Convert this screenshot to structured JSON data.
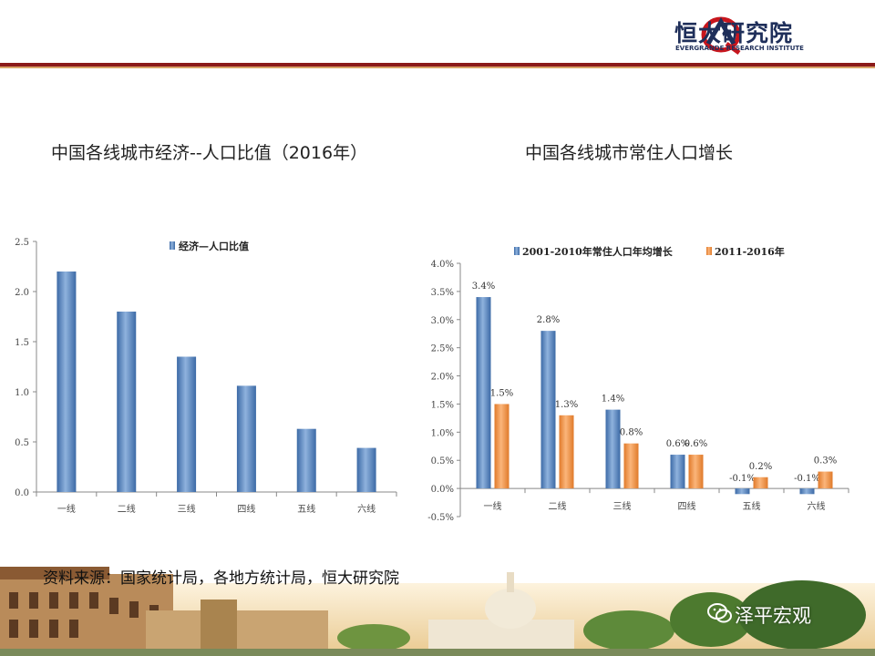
{
  "header": {
    "logo_cn": "恒大研究院",
    "logo_en": "EVERGRANDE RESEARCH INSTITUTE"
  },
  "titles": {
    "left": "中国各线城市经济--人口比值（2016年）",
    "right": "中国各线城市常住人口增长"
  },
  "footer": {
    "source": "资料来源：国家统计局，各地方统计局，恒大研究院",
    "watermark": "泽平宏观"
  },
  "colors": {
    "blue": "#4f81bd",
    "orange": "#f79646",
    "header_red": "#8b1a1a"
  },
  "chart_data": [
    {
      "type": "bar",
      "categories": [
        "一线",
        "二线",
        "三线",
        "四线",
        "五线",
        "六线"
      ],
      "series": [
        {
          "name": "经济—人口比值",
          "values": [
            2.2,
            1.8,
            1.35,
            1.06,
            0.63,
            0.44
          ]
        }
      ],
      "ylim": [
        0,
        2.5
      ],
      "yticks": [
        "0.0",
        "0.5",
        "1.0",
        "1.5",
        "2.0",
        "2.5"
      ],
      "legend": "top"
    },
    {
      "type": "bar",
      "categories": [
        "一线",
        "二线",
        "三线",
        "四线",
        "五线",
        "六线"
      ],
      "series": [
        {
          "name": "2001-2010年常住人口年均增长",
          "values": [
            3.4,
            2.8,
            1.4,
            0.6,
            -0.1,
            -0.1
          ],
          "labels": [
            "3.4%",
            "2.8%",
            "1.4%",
            "0.6%",
            "-0.1%",
            "-0.1%"
          ]
        },
        {
          "name": "2011-2016年",
          "values": [
            1.5,
            1.3,
            0.8,
            0.6,
            0.2,
            0.3
          ],
          "labels": [
            "1.5%",
            "1.3%",
            "0.8%",
            "0.6%",
            "0.2%",
            "0.3%"
          ]
        }
      ],
      "ylim": [
        -0.5,
        4.0
      ],
      "yticks": [
        "-0.5%",
        "0.0%",
        "0.5%",
        "1.0%",
        "1.5%",
        "2.0%",
        "2.5%",
        "3.0%",
        "3.5%",
        "4.0%"
      ],
      "legend": "top"
    }
  ]
}
